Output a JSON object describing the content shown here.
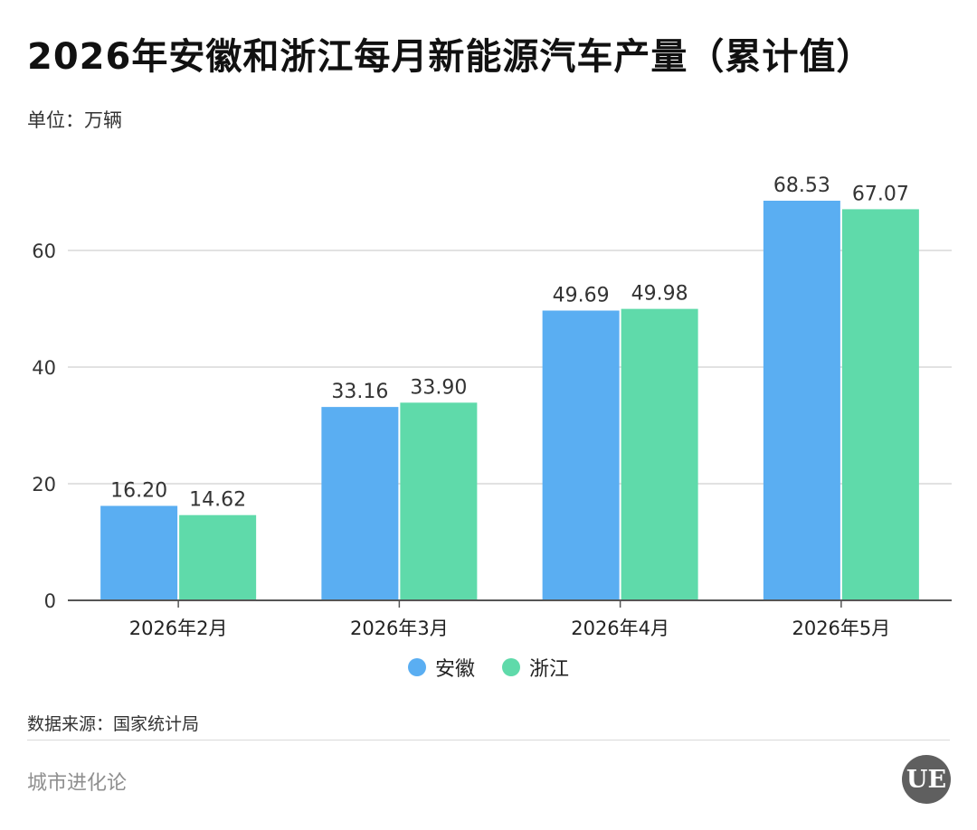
{
  "header": {
    "title": "2026年安徽和浙江每月新能源汽车产量（累计值）",
    "unit": "单位：万辆"
  },
  "footer": {
    "source": "数据来源：国家统计局",
    "brand": "城市进化论",
    "logo_text": "UE"
  },
  "colors": {
    "anhui": "#5aaef2",
    "zhejiang": "#5fdaaa",
    "grid": "#d9d9d9",
    "axis": "#555555",
    "text": "#333333"
  },
  "chart_data": {
    "type": "bar",
    "title": "2026年安徽和浙江每月新能源汽车产量（累计值）",
    "ylabel": "单位：万辆",
    "xlabel": "",
    "categories": [
      "2026年2月",
      "2026年3月",
      "2026年4月",
      "2026年5月"
    ],
    "series": [
      {
        "name": "安徽",
        "values": [
          16.2,
          33.16,
          49.69,
          68.53
        ],
        "labels": [
          "16.20",
          "33.16",
          "49.69",
          "68.53"
        ]
      },
      {
        "name": "浙江",
        "values": [
          14.62,
          33.9,
          49.98,
          67.07
        ],
        "labels": [
          "14.62",
          "33.90",
          "49.98",
          "67.07"
        ]
      }
    ],
    "ylim": [
      0,
      70
    ],
    "yticks": [
      0,
      20,
      40,
      60
    ],
    "grid": true,
    "legend": "bottom-center"
  }
}
